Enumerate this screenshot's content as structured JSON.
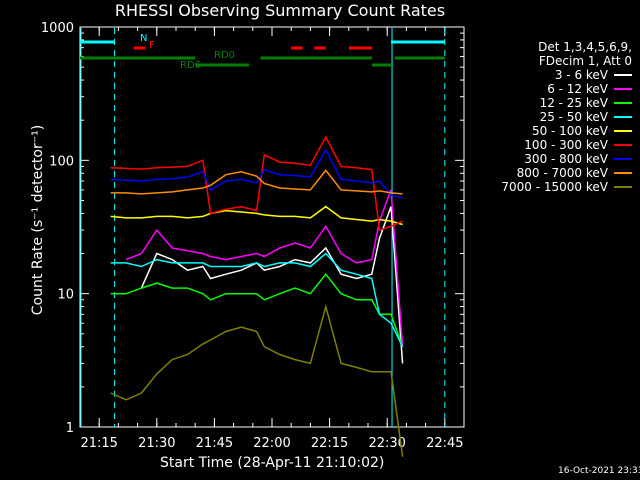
{
  "title": "RHESSI Observing Summary Count Rates",
  "xlabel": "Start Time (28-Apr-11 21:10:02)",
  "ylabel": "Count Rate (s⁻¹ detector⁻¹)",
  "timestamp": "16-Oct-2021 23:33",
  "legend_header": [
    "Det 1,3,4,5,6,9,",
    "FDecim 1, Att 0"
  ],
  "flags": [
    {
      "label": "N",
      "color": "#00ffff"
    },
    {
      "label": "F",
      "color": "#ff0000"
    },
    {
      "label": "RD0",
      "color": "#008000"
    },
    {
      "label": "RD6",
      "color": "#008000"
    }
  ],
  "chart_data": {
    "type": "line",
    "title": "RHESSI Observing Summary Count Rates",
    "xlabel": "Start Time (28-Apr-11 21:10:02)",
    "ylabel": "Count Rate (s⁻¹ detector⁻¹)",
    "yscale": "log",
    "ylim": [
      1,
      1000
    ],
    "xlim": [
      "21:10",
      "22:50"
    ],
    "x_ticks": [
      "21:15",
      "21:30",
      "21:45",
      "22:00",
      "22:15",
      "22:30",
      "22:45"
    ],
    "y_ticks": [
      "1",
      "10",
      "100",
      "1000"
    ],
    "legend_position": "right",
    "x": [
      "21:18",
      "21:22",
      "21:26",
      "21:30",
      "21:34",
      "21:38",
      "21:42",
      "21:44",
      "21:48",
      "21:52",
      "21:56",
      "21:58",
      "22:02",
      "22:06",
      "22:10",
      "22:14",
      "22:18",
      "22:22",
      "22:26",
      "22:28",
      "22:31",
      "22:34"
    ],
    "series": [
      {
        "name": "3 - 6 keV",
        "color": "#ffffff",
        "values": [
          null,
          null,
          11,
          20,
          18,
          15,
          16,
          13,
          14,
          15,
          17,
          15,
          16,
          18,
          17,
          22,
          14,
          13,
          14,
          26,
          45,
          3
        ]
      },
      {
        "name": "6 - 12 keV",
        "color": "#ff00ff",
        "values": [
          null,
          18,
          20,
          30,
          22,
          21,
          20,
          19,
          18,
          19,
          20,
          19,
          22,
          24,
          22,
          32,
          20,
          17,
          18,
          35,
          60,
          4
        ]
      },
      {
        "name": "12 - 25 keV",
        "color": "#00ff00",
        "values": [
          10,
          10,
          11,
          12,
          11,
          11,
          10,
          9,
          10,
          10,
          10,
          9,
          10,
          11,
          10,
          14,
          10,
          9,
          9,
          7,
          7,
          4
        ]
      },
      {
        "name": "25 - 50 keV",
        "color": "#00ffff",
        "values": [
          17,
          17,
          16,
          18,
          17,
          17,
          17,
          16,
          16,
          16,
          17,
          16,
          17,
          17,
          16,
          20,
          15,
          14,
          13,
          7,
          6,
          4
        ]
      },
      {
        "name": "50 - 100 keV",
        "color": "#ffff00",
        "values": [
          38,
          37,
          37,
          38,
          38,
          37,
          38,
          40,
          42,
          41,
          40,
          39,
          38,
          38,
          37,
          45,
          37,
          36,
          35,
          36,
          35,
          33
        ]
      },
      {
        "name": "100 - 300 keV",
        "color": "#ff0000",
        "values": [
          88,
          87,
          86,
          88,
          89,
          90,
          100,
          40,
          43,
          45,
          42,
          110,
          97,
          95,
          92,
          150,
          90,
          88,
          85,
          30,
          32,
          35
        ]
      },
      {
        "name": "300 - 800 keV",
        "color": "#0000ff",
        "values": [
          72,
          71,
          70,
          72,
          73,
          75,
          82,
          60,
          70,
          72,
          68,
          85,
          78,
          77,
          75,
          120,
          72,
          70,
          68,
          70,
          55,
          52
        ]
      },
      {
        "name": "800 - 7000 keV",
        "color": "#ff8c00",
        "values": [
          57,
          57,
          56,
          57,
          58,
          60,
          62,
          65,
          78,
          82,
          76,
          67,
          62,
          61,
          60,
          84,
          60,
          59,
          58,
          59,
          57,
          56
        ]
      },
      {
        "name": "7000 - 15000 keV",
        "color": "#808000",
        "values": [
          1.8,
          1.6,
          1.8,
          2.5,
          3.2,
          3.5,
          4.2,
          4.5,
          5.2,
          5.6,
          5.2,
          4.0,
          3.5,
          3.2,
          3.0,
          8.0,
          3.0,
          2.8,
          2.6,
          2.6,
          2.6,
          0.6
        ]
      }
    ],
    "markers": {
      "cyan_solid_x": [
        "21:10",
        "22:31"
      ],
      "cyan_dashed_x": [
        "21:19",
        "22:45"
      ]
    }
  }
}
